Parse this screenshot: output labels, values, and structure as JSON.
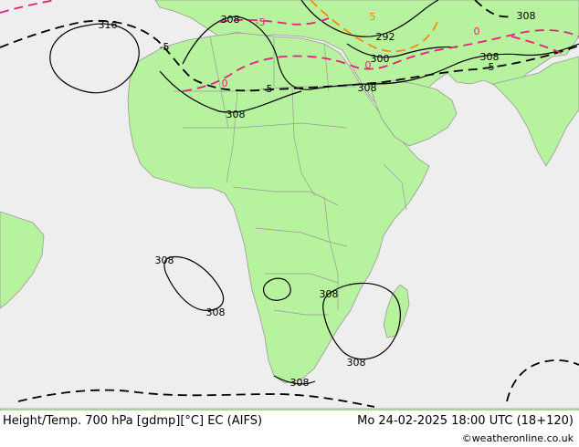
{
  "map": {
    "colors": {
      "ocean": "#eeeeee",
      "land": "#b7f29e",
      "border": "#9a9a9a",
      "height_contour": "#000000",
      "temp_warm": "#e8207c",
      "temp_hot": "#ff8800"
    },
    "height_labels": [
      "316",
      "308",
      "308",
      "308",
      "308",
      "308",
      "308",
      "308",
      "308",
      "292",
      "300",
      "308",
      "308"
    ],
    "temp_labels": [
      "-5",
      "-5",
      "-5",
      "0",
      "0",
      "-5",
      "5",
      "0"
    ]
  },
  "footer": {
    "title": "Height/Temp. 700 hPa [gdmp][°C] EC (AIFS)",
    "datetime": "Mo 24-02-2025 18:00 UTC (18+120)",
    "credit": "©weatheronline.co.uk"
  }
}
